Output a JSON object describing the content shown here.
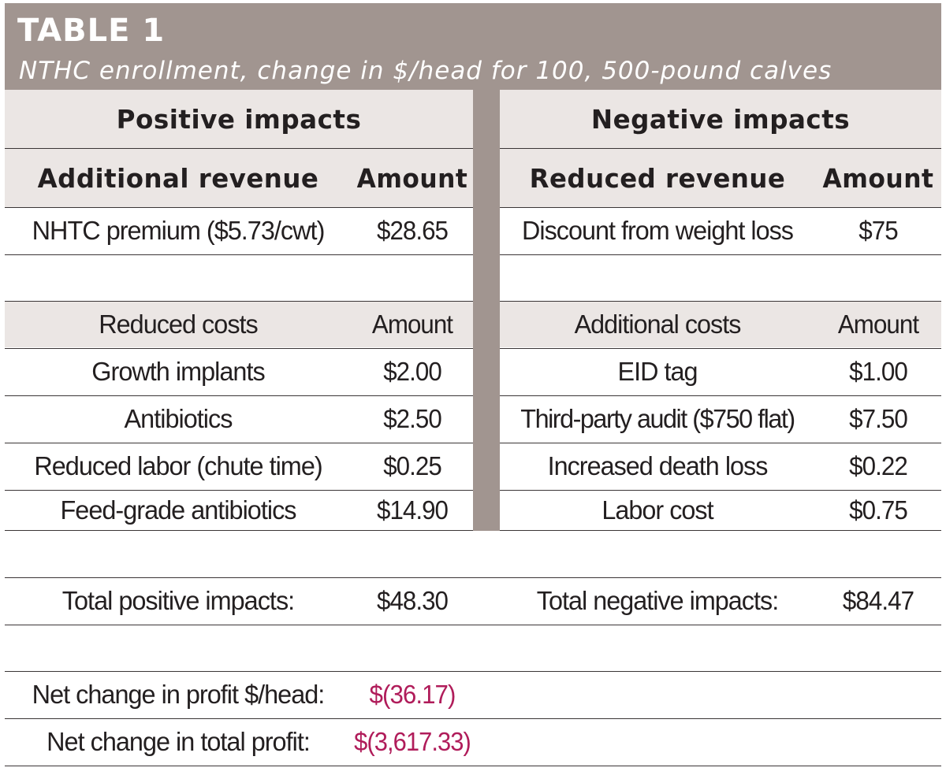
{
  "header": {
    "title": "TABLE 1",
    "subtitle": "NTHC enrollment, change in $/head for 100, 500-pound calves"
  },
  "sections": {
    "positive": "Positive impacts",
    "negative": "Negative impacts"
  },
  "revenue_headers": {
    "left": "Additional revenue",
    "left_amount": "Amount",
    "right": "Reduced revenue",
    "right_amount": "Amount"
  },
  "revenue_rows": [
    {
      "left": "NHTC premium ($5.73/cwt)",
      "left_amount": "$28.65",
      "right": "Discount from weight loss",
      "right_amount": "$75"
    }
  ],
  "cost_headers": {
    "left": "Reduced costs",
    "left_amount": "Amount",
    "right": "Additional costs",
    "right_amount": "Amount"
  },
  "cost_rows": [
    {
      "left": "Growth implants",
      "left_amount": "$2.00",
      "right": "EID tag",
      "right_amount": "$1.00"
    },
    {
      "left": "Antibiotics",
      "left_amount": "$2.50",
      "right": "Third-party audit ($750 flat)",
      "right_amount": "$7.50"
    },
    {
      "left": "Reduced labor (chute time)",
      "left_amount": "$0.25",
      "right": "Increased death loss",
      "right_amount": "$0.22"
    },
    {
      "left": "Feed-grade antibiotics",
      "left_amount": "$14.90",
      "right": "Labor cost",
      "right_amount": "$0.75"
    }
  ],
  "totals": {
    "left": "Total positive impacts:",
    "left_amount": "$48.30",
    "right": "Total negative impacts:",
    "right_amount": "$84.47"
  },
  "net": [
    {
      "label": "Net change in profit $/head:",
      "value": "$(36.17)"
    },
    {
      "label": "Net change in total profit:",
      "value": "$(3,617.33)"
    }
  ],
  "colors": {
    "banner": "#a19590",
    "shade": "#ebe6e4",
    "negative_value": "#b01c5a"
  }
}
